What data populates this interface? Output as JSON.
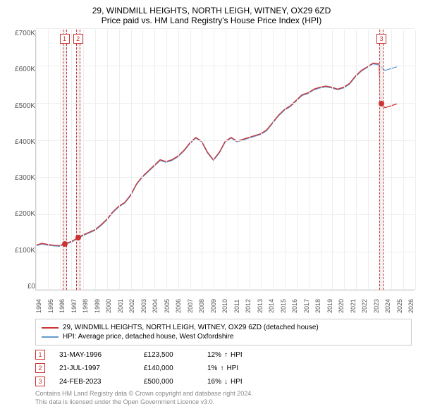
{
  "title_line1": "29, WINDMILL HEIGHTS, NORTH LEIGH, WITNEY, OX29 6ZD",
  "title_line2": "Price paid vs. HM Land Registry's House Price Index (HPI)",
  "chart": {
    "type": "line",
    "xlim": [
      1994,
      2026
    ],
    "ylim": [
      0,
      700000
    ],
    "ytick_step": 100000,
    "yticks": [
      "£0",
      "£100K",
      "£200K",
      "£300K",
      "£400K",
      "£500K",
      "£600K",
      "£700K"
    ],
    "xticks": [
      "1994",
      "1995",
      "1996",
      "1997",
      "1998",
      "1999",
      "2000",
      "2001",
      "2002",
      "2003",
      "2004",
      "2005",
      "2006",
      "2007",
      "2008",
      "2009",
      "2010",
      "2011",
      "2012",
      "2013",
      "2014",
      "2015",
      "2016",
      "2017",
      "2018",
      "2019",
      "2020",
      "2021",
      "2022",
      "2023",
      "2024",
      "2025",
      "2026"
    ],
    "grid_color": "#eeeeee",
    "series_red": {
      "color": "#cc3333",
      "label": "29, WINDMILL HEIGHTS, NORTH LEIGH, WITNEY, OX29 6ZD (detached house)",
      "points": [
        [
          1994.0,
          120000
        ],
        [
          1994.5,
          125000
        ],
        [
          1995.0,
          122000
        ],
        [
          1995.5,
          120000
        ],
        [
          1996.0,
          119000
        ],
        [
          1996.4,
          123500
        ],
        [
          1997.0,
          130000
        ],
        [
          1997.55,
          140000
        ],
        [
          1998.0,
          148000
        ],
        [
          1998.5,
          155000
        ],
        [
          1999.0,
          162000
        ],
        [
          1999.5,
          175000
        ],
        [
          2000.0,
          190000
        ],
        [
          2000.5,
          210000
        ],
        [
          2001.0,
          225000
        ],
        [
          2001.5,
          235000
        ],
        [
          2002.0,
          255000
        ],
        [
          2002.5,
          285000
        ],
        [
          2003.0,
          305000
        ],
        [
          2003.5,
          320000
        ],
        [
          2004.0,
          335000
        ],
        [
          2004.5,
          350000
        ],
        [
          2005.0,
          345000
        ],
        [
          2005.5,
          350000
        ],
        [
          2006.0,
          360000
        ],
        [
          2006.5,
          375000
        ],
        [
          2007.0,
          395000
        ],
        [
          2007.5,
          410000
        ],
        [
          2008.0,
          400000
        ],
        [
          2008.5,
          370000
        ],
        [
          2009.0,
          350000
        ],
        [
          2009.5,
          370000
        ],
        [
          2010.0,
          400000
        ],
        [
          2010.5,
          410000
        ],
        [
          2011.0,
          400000
        ],
        [
          2011.5,
          405000
        ],
        [
          2012.0,
          410000
        ],
        [
          2012.5,
          415000
        ],
        [
          2013.0,
          420000
        ],
        [
          2013.5,
          430000
        ],
        [
          2014.0,
          450000
        ],
        [
          2014.5,
          470000
        ],
        [
          2015.0,
          485000
        ],
        [
          2015.5,
          495000
        ],
        [
          2016.0,
          510000
        ],
        [
          2016.5,
          525000
        ],
        [
          2017.0,
          530000
        ],
        [
          2017.5,
          540000
        ],
        [
          2018.0,
          545000
        ],
        [
          2018.5,
          548000
        ],
        [
          2019.0,
          545000
        ],
        [
          2019.5,
          540000
        ],
        [
          2020.0,
          545000
        ],
        [
          2020.5,
          555000
        ],
        [
          2021.0,
          575000
        ],
        [
          2021.5,
          590000
        ],
        [
          2022.0,
          600000
        ],
        [
          2022.5,
          610000
        ],
        [
          2023.0,
          608000
        ],
        [
          2023.15,
          500000
        ],
        [
          2023.5,
          490000
        ],
        [
          2024.0,
          495000
        ],
        [
          2024.5,
          500000
        ]
      ]
    },
    "series_blue": {
      "color": "#6699cc",
      "label": "HPI: Average price, detached house, West Oxfordshire",
      "points": [
        [
          1994.0,
          118000
        ],
        [
          1994.5,
          123000
        ],
        [
          1995.0,
          120000
        ],
        [
          1995.5,
          118000
        ],
        [
          1996.0,
          117000
        ],
        [
          1996.5,
          123000
        ],
        [
          1997.0,
          128000
        ],
        [
          1997.5,
          138000
        ],
        [
          1998.0,
          146000
        ],
        [
          1998.5,
          153000
        ],
        [
          1999.0,
          160000
        ],
        [
          1999.5,
          173000
        ],
        [
          2000.0,
          188000
        ],
        [
          2000.5,
          208000
        ],
        [
          2001.0,
          223000
        ],
        [
          2001.5,
          233000
        ],
        [
          2002.0,
          253000
        ],
        [
          2002.5,
          283000
        ],
        [
          2003.0,
          303000
        ],
        [
          2003.5,
          318000
        ],
        [
          2004.0,
          333000
        ],
        [
          2004.5,
          348000
        ],
        [
          2005.0,
          343000
        ],
        [
          2005.5,
          348000
        ],
        [
          2006.0,
          358000
        ],
        [
          2006.5,
          373000
        ],
        [
          2007.0,
          393000
        ],
        [
          2007.5,
          408000
        ],
        [
          2008.0,
          398000
        ],
        [
          2008.5,
          368000
        ],
        [
          2009.0,
          348000
        ],
        [
          2009.5,
          368000
        ],
        [
          2010.0,
          398000
        ],
        [
          2010.5,
          408000
        ],
        [
          2011.0,
          398000
        ],
        [
          2011.5,
          403000
        ],
        [
          2012.0,
          408000
        ],
        [
          2012.5,
          413000
        ],
        [
          2013.0,
          418000
        ],
        [
          2013.5,
          428000
        ],
        [
          2014.0,
          448000
        ],
        [
          2014.5,
          468000
        ],
        [
          2015.0,
          483000
        ],
        [
          2015.5,
          493000
        ],
        [
          2016.0,
          508000
        ],
        [
          2016.5,
          523000
        ],
        [
          2017.0,
          528000
        ],
        [
          2017.5,
          538000
        ],
        [
          2018.0,
          543000
        ],
        [
          2018.5,
          546000
        ],
        [
          2019.0,
          543000
        ],
        [
          2019.5,
          538000
        ],
        [
          2020.0,
          543000
        ],
        [
          2020.5,
          553000
        ],
        [
          2021.0,
          573000
        ],
        [
          2021.5,
          588000
        ],
        [
          2022.0,
          598000
        ],
        [
          2022.5,
          608000
        ],
        [
          2023.0,
          605000
        ],
        [
          2023.5,
          590000
        ],
        [
          2024.0,
          595000
        ],
        [
          2024.5,
          600000
        ]
      ]
    },
    "markers": [
      {
        "num": "1",
        "year": 1996.41,
        "price": 123500
      },
      {
        "num": "2",
        "year": 1997.55,
        "price": 140000
      },
      {
        "num": "3",
        "year": 2023.15,
        "price": 500000
      }
    ]
  },
  "legend": {
    "red_label": "29, WINDMILL HEIGHTS, NORTH LEIGH, WITNEY, OX29 6ZD (detached house)",
    "blue_label": "HPI: Average price, detached house, West Oxfordshire",
    "red_color": "#cc3333",
    "blue_color": "#6699cc"
  },
  "sales": [
    {
      "num": "1",
      "date": "31-MAY-1996",
      "price": "£123,500",
      "hpi_pct": "12%",
      "hpi_dir": "↑",
      "hpi_label": "HPI"
    },
    {
      "num": "2",
      "date": "21-JUL-1997",
      "price": "£140,000",
      "hpi_pct": "1%",
      "hpi_dir": "↑",
      "hpi_label": "HPI"
    },
    {
      "num": "3",
      "date": "24-FEB-2023",
      "price": "£500,000",
      "hpi_pct": "16%",
      "hpi_dir": "↓",
      "hpi_label": "HPI"
    }
  ],
  "attribution": {
    "line1": "Contains HM Land Registry data © Crown copyright and database right 2024.",
    "line2": "This data is licensed under the Open Government Licence v3.0."
  }
}
